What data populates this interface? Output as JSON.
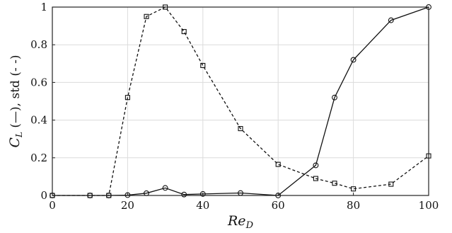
{
  "chart_data": {
    "type": "line",
    "title": "",
    "xlabel_main": "Re",
    "xlabel_sub": "D",
    "ylabel_main": "C",
    "ylabel_sub": "L",
    "ylabel_rest": " (—), std (- -)",
    "xlim": [
      0,
      100
    ],
    "ylim": [
      0,
      1
    ],
    "xticks": [
      0,
      20,
      40,
      60,
      80,
      100
    ],
    "yticks": [
      0,
      0.2,
      0.4,
      0.6,
      0.8,
      1
    ],
    "xtick_labels": [
      "0",
      "20",
      "40",
      "60",
      "80",
      "100"
    ],
    "ytick_labels": [
      "0",
      "0.2",
      "0.4",
      "0.6",
      "0.8",
      "1"
    ],
    "grid": true,
    "series": [
      {
        "style": "solid",
        "marker": "circle",
        "x": [
          0,
          10,
          15,
          20,
          25,
          30,
          35,
          40,
          50,
          60,
          70,
          75,
          80,
          90,
          100
        ],
        "y": [
          0,
          0,
          0,
          0.002,
          0.012,
          0.04,
          0.005,
          0.008,
          0.013,
          0,
          0.16,
          0.52,
          0.72,
          0.93,
          1.0
        ]
      },
      {
        "style": "dashed",
        "marker": "square",
        "x": [
          0,
          10,
          15,
          20,
          25,
          30,
          35,
          40,
          50,
          60,
          70,
          75,
          80,
          90,
          100
        ],
        "y": [
          0,
          0,
          0,
          0.52,
          0.95,
          1.0,
          0.87,
          0.69,
          0.355,
          0.165,
          0.09,
          0.065,
          0.035,
          0.06,
          0.21
        ]
      }
    ]
  }
}
